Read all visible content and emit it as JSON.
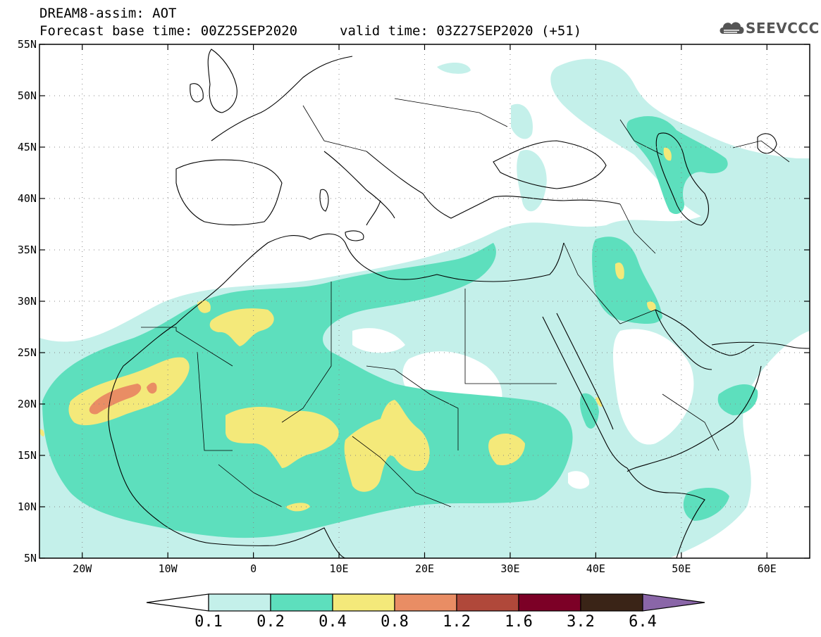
{
  "header": {
    "title_line1": "DREAM8-assim: AOT",
    "title_line2": "Forecast base time: 00Z25SEP2020",
    "valid_time": "valid time: 03Z27SEP2020 (+51)"
  },
  "logo": {
    "text": "SEEVCCC",
    "icon": "cloud-icon"
  },
  "map": {
    "lon_range": [
      -25,
      65
    ],
    "lat_range": [
      5,
      55
    ],
    "lat_ticks": [
      {
        "v": 55,
        "label": "55N"
      },
      {
        "v": 50,
        "label": "50N"
      },
      {
        "v": 45,
        "label": "45N"
      },
      {
        "v": 40,
        "label": "40N"
      },
      {
        "v": 35,
        "label": "35N"
      },
      {
        "v": 30,
        "label": "30N"
      },
      {
        "v": 25,
        "label": "25N"
      },
      {
        "v": 20,
        "label": "20N"
      },
      {
        "v": 15,
        "label": "15N"
      },
      {
        "v": 10,
        "label": "10N"
      },
      {
        "v": 5,
        "label": "5N"
      }
    ],
    "lon_ticks": [
      {
        "v": -20,
        "label": "20W"
      },
      {
        "v": -10,
        "label": "10W"
      },
      {
        "v": 0,
        "label": "0"
      },
      {
        "v": 10,
        "label": "10E"
      },
      {
        "v": 20,
        "label": "20E"
      },
      {
        "v": 30,
        "label": "30E"
      },
      {
        "v": 40,
        "label": "40E"
      },
      {
        "v": 50,
        "label": "50E"
      },
      {
        "v": 60,
        "label": "60E"
      }
    ],
    "grid": "dotted"
  },
  "colorbar": {
    "levels": [
      "0.1",
      "0.2",
      "0.4",
      "0.8",
      "1.2",
      "1.6",
      "3.2",
      "6.4"
    ],
    "colors": [
      "#ffffff",
      "#c4f0ea",
      "#5ddfbd",
      "#f4e97a",
      "#e98d64",
      "#b0483a",
      "#7c0026",
      "#3a2417",
      "#8a66a8"
    ]
  },
  "colors": {
    "c1": "#c4f0ea",
    "c2": "#5ddfbd",
    "c3": "#f4e97a",
    "c4": "#e98d64",
    "coast": "#000000"
  }
}
